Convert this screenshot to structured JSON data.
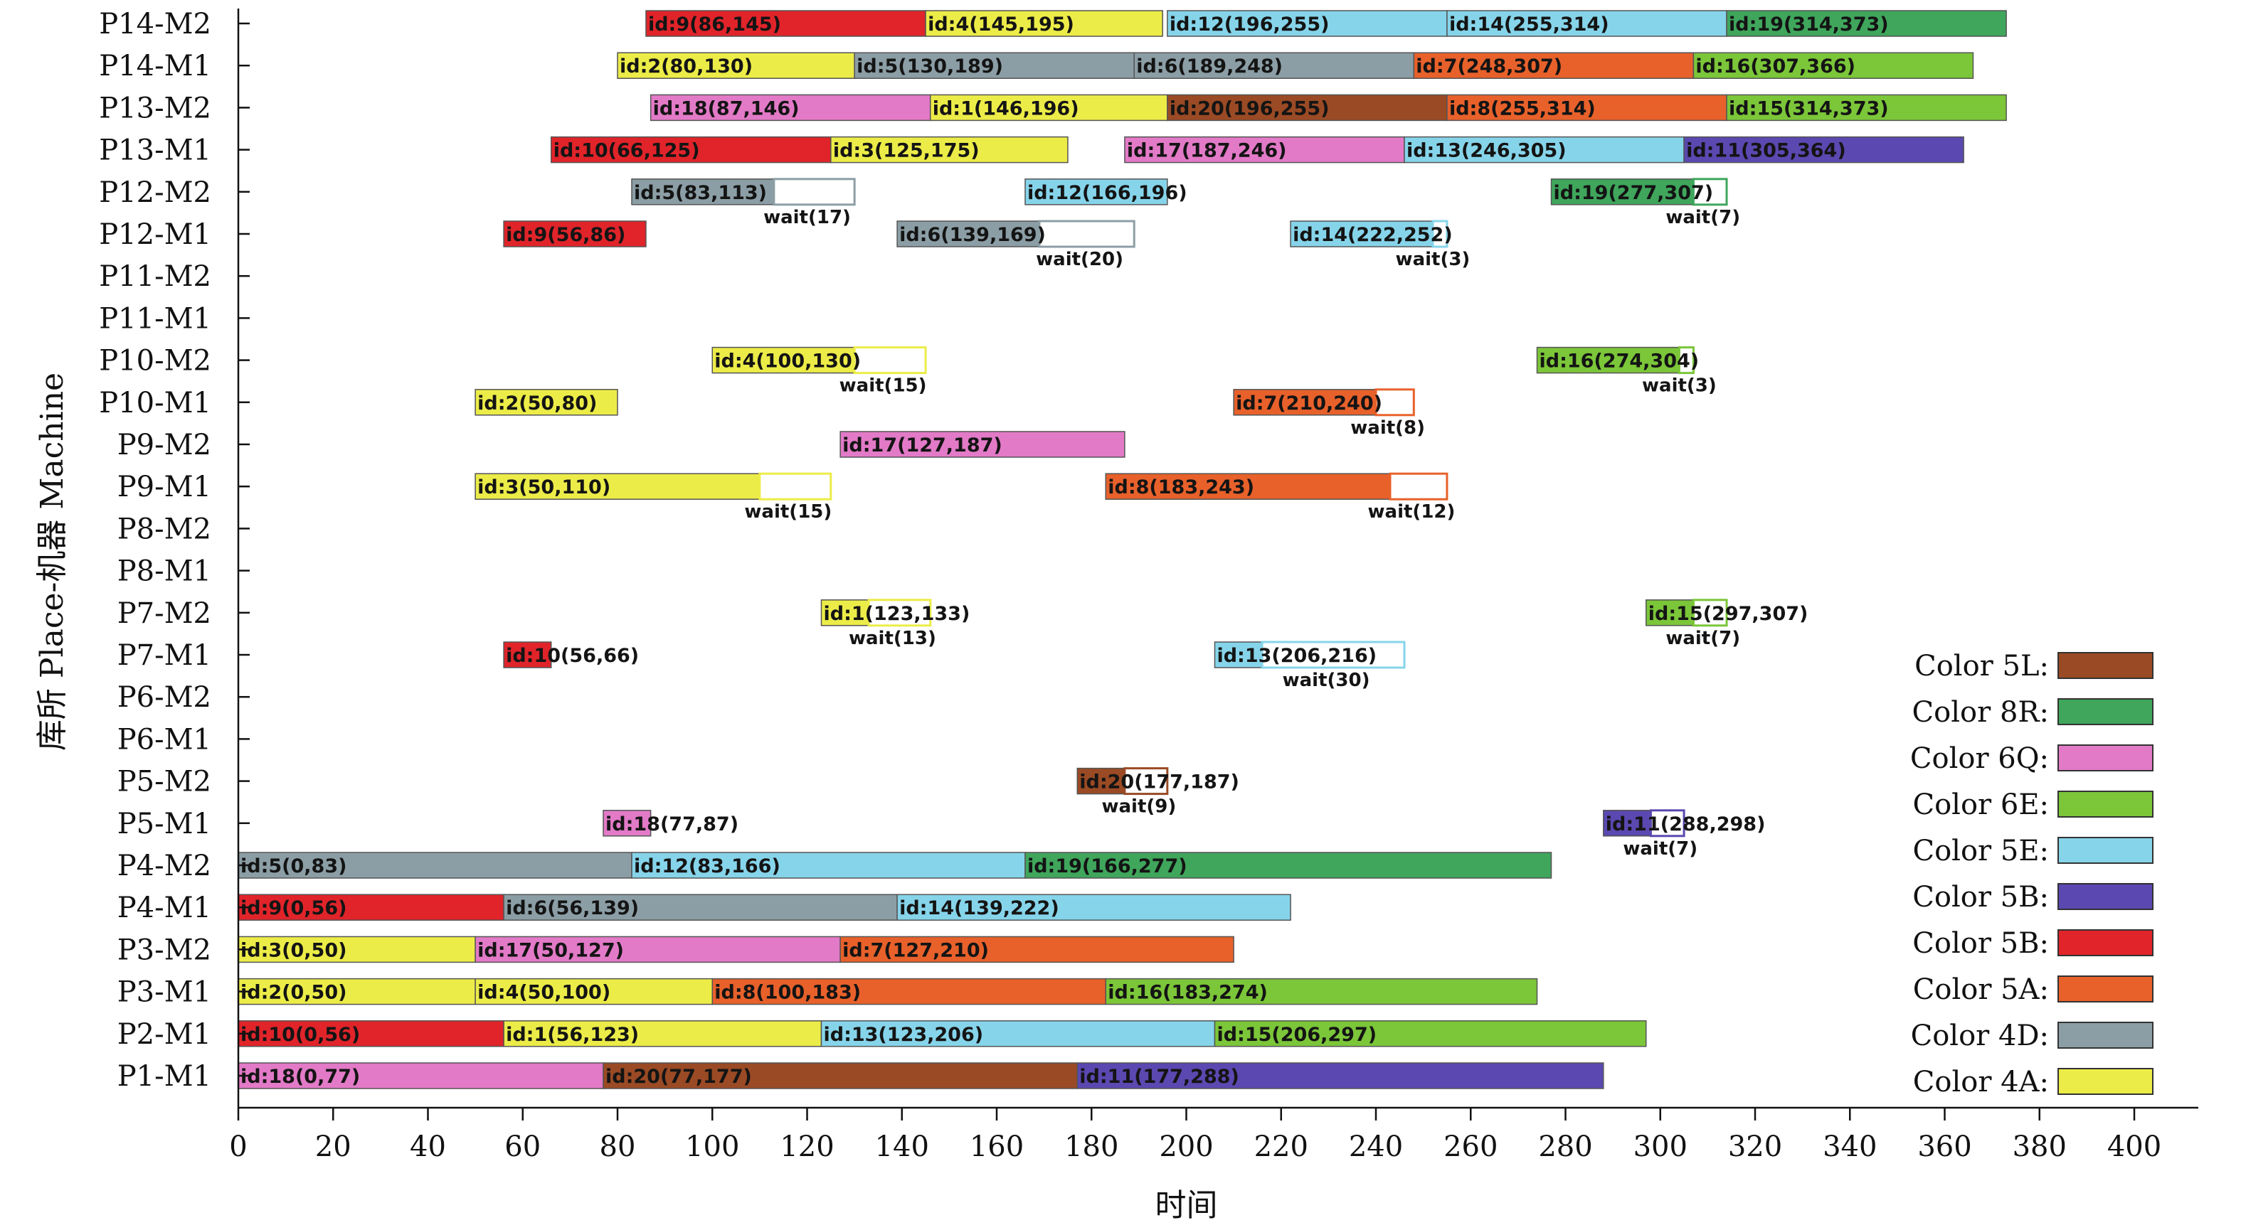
{
  "chart_data": {
    "type": "gantt",
    "title": "",
    "xlabel": "时间",
    "ylabel": "库所 Place-机器 Machine",
    "xlim": [
      0,
      400
    ],
    "xticks": [
      0,
      20,
      40,
      60,
      80,
      100,
      120,
      140,
      160,
      180,
      200,
      220,
      240,
      260,
      280,
      300,
      320,
      340,
      360,
      380,
      400
    ],
    "rows": [
      "P14-M2",
      "P14-M1",
      "P13-M2",
      "P13-M1",
      "P12-M2",
      "P12-M1",
      "P11-M2",
      "P11-M1",
      "P10-M2",
      "P10-M1",
      "P9-M2",
      "P9-M1",
      "P8-M2",
      "P8-M1",
      "P7-M2",
      "P7-M1",
      "P6-M2",
      "P6-M1",
      "P5-M2",
      "P5-M1",
      "P4-M2",
      "P4-M1",
      "P3-M2",
      "P3-M1",
      "P2-M1",
      "P1-M1"
    ],
    "colors": {
      "4A": "#ecec48",
      "4D": "#8c9ea5",
      "5A": "#e8612b",
      "5B_red": "#e0242a",
      "5B_blue": "#5b48b0",
      "5E": "#86d4ea",
      "6E": "#7bc639",
      "6Q": "#e27ac7",
      "8R": "#3fa65c",
      "5L": "#9a4a24"
    },
    "bars": [
      {
        "row": "P14-M2",
        "start": 86,
        "end": 145,
        "label": "id:9(86,145)",
        "color": "5B_red"
      },
      {
        "row": "P14-M2",
        "start": 145,
        "end": 195,
        "label": "id:4(145,195)",
        "color": "4A"
      },
      {
        "row": "P14-M2",
        "start": 196,
        "end": 255,
        "label": "id:12(196,255)",
        "color": "5E"
      },
      {
        "row": "P14-M2",
        "start": 255,
        "end": 314,
        "label": "id:14(255,314)",
        "color": "5E"
      },
      {
        "row": "P14-M2",
        "start": 314,
        "end": 373,
        "label": "id:19(314,373)",
        "color": "8R"
      },
      {
        "row": "P14-M1",
        "start": 80,
        "end": 130,
        "label": "id:2(80,130)",
        "color": "4A"
      },
      {
        "row": "P14-M1",
        "start": 130,
        "end": 189,
        "label": "id:5(130,189)",
        "color": "4D"
      },
      {
        "row": "P14-M1",
        "start": 189,
        "end": 248,
        "label": "id:6(189,248)",
        "color": "4D"
      },
      {
        "row": "P14-M1",
        "start": 248,
        "end": 307,
        "label": "id:7(248,307)",
        "color": "5A"
      },
      {
        "row": "P14-M1",
        "start": 307,
        "end": 366,
        "label": "id:16(307,366)",
        "color": "6E"
      },
      {
        "row": "P13-M2",
        "start": 87,
        "end": 146,
        "label": "id:18(87,146)",
        "color": "6Q"
      },
      {
        "row": "P13-M2",
        "start": 146,
        "end": 196,
        "label": "id:1(146,196)",
        "color": "4A"
      },
      {
        "row": "P13-M2",
        "start": 196,
        "end": 255,
        "label": "id:20(196,255)",
        "color": "5L"
      },
      {
        "row": "P13-M2",
        "start": 255,
        "end": 314,
        "label": "id:8(255,314)",
        "color": "5A"
      },
      {
        "row": "P13-M2",
        "start": 314,
        "end": 373,
        "label": "id:15(314,373)",
        "color": "6E"
      },
      {
        "row": "P13-M1",
        "start": 66,
        "end": 125,
        "label": "id:10(66,125)",
        "color": "5B_red"
      },
      {
        "row": "P13-M1",
        "start": 125,
        "end": 175,
        "label": "id:3(125,175)",
        "color": "4A"
      },
      {
        "row": "P13-M1",
        "start": 187,
        "end": 246,
        "label": "id:17(187,246)",
        "color": "6Q"
      },
      {
        "row": "P13-M1",
        "start": 246,
        "end": 305,
        "label": "id:13(246,305)",
        "color": "5E"
      },
      {
        "row": "P13-M1",
        "start": 305,
        "end": 364,
        "label": "id:11(305,364)",
        "color": "5B_blue"
      },
      {
        "row": "P12-M2",
        "start": 83,
        "end": 113,
        "label": "id:5(83,113)",
        "color": "4D",
        "wait": 17,
        "wait_label": "wait(17)"
      },
      {
        "row": "P12-M2",
        "start": 166,
        "end": 196,
        "label": "id:12(166,196)",
        "color": "5E"
      },
      {
        "row": "P12-M2",
        "start": 277,
        "end": 307,
        "label": "id:19(277,307)",
        "color": "8R",
        "wait": 7,
        "wait_label": "wait(7)"
      },
      {
        "row": "P12-M1",
        "start": 56,
        "end": 86,
        "label": "id:9(56,86)",
        "color": "5B_red"
      },
      {
        "row": "P12-M1",
        "start": 139,
        "end": 169,
        "label": "id:6(139,169)",
        "color": "4D",
        "wait": 20,
        "wait_label": "wait(20)"
      },
      {
        "row": "P12-M1",
        "start": 222,
        "end": 252,
        "label": "id:14(222,252)",
        "color": "5E",
        "wait": 3,
        "wait_label": "wait(3)"
      },
      {
        "row": "P10-M2",
        "start": 100,
        "end": 130,
        "label": "id:4(100,130)",
        "color": "4A",
        "wait": 15,
        "wait_label": "wait(15)"
      },
      {
        "row": "P10-M2",
        "start": 274,
        "end": 304,
        "label": "id:16(274,304)",
        "color": "6E",
        "wait": 3,
        "wait_label": "wait(3)"
      },
      {
        "row": "P10-M1",
        "start": 50,
        "end": 80,
        "label": "id:2(50,80)",
        "color": "4A"
      },
      {
        "row": "P10-M1",
        "start": 210,
        "end": 240,
        "label": "id:7(210,240)",
        "color": "5A",
        "wait": 8,
        "wait_label": "wait(8)"
      },
      {
        "row": "P9-M2",
        "start": 127,
        "end": 187,
        "label": "id:17(127,187)",
        "color": "6Q"
      },
      {
        "row": "P9-M1",
        "start": 50,
        "end": 110,
        "label": "id:3(50,110)",
        "color": "4A",
        "wait": 15,
        "wait_label": "wait(15)"
      },
      {
        "row": "P9-M1",
        "start": 183,
        "end": 243,
        "label": "id:8(183,243)",
        "color": "5A",
        "wait": 12,
        "wait_label": "wait(12)"
      },
      {
        "row": "P7-M2",
        "start": 123,
        "end": 133,
        "label": "id:1(123,133)",
        "color": "4A",
        "wait": 13,
        "wait_label": "wait(13)"
      },
      {
        "row": "P7-M2",
        "start": 297,
        "end": 307,
        "label": "id:15(297,307)",
        "color": "6E",
        "wait": 7,
        "wait_label": "wait(7)"
      },
      {
        "row": "P7-M1",
        "start": 56,
        "end": 66,
        "label": "id:10(56,66)",
        "color": "5B_red"
      },
      {
        "row": "P7-M1",
        "start": 206,
        "end": 216,
        "label": "id:13(206,216)",
        "color": "5E",
        "wait": 30,
        "wait_label": "wait(30)"
      },
      {
        "row": "P5-M2",
        "start": 177,
        "end": 187,
        "label": "id:20(177,187)",
        "color": "5L",
        "wait": 9,
        "wait_label": "wait(9)"
      },
      {
        "row": "P5-M1",
        "start": 77,
        "end": 87,
        "label": "id:18(77,87)",
        "color": "6Q"
      },
      {
        "row": "P5-M1",
        "start": 288,
        "end": 298,
        "label": "id:11(288,298)",
        "color": "5B_blue",
        "wait": 7,
        "wait_label": "wait(7)"
      },
      {
        "row": "P4-M2",
        "start": 0,
        "end": 83,
        "label": "id:5(0,83)",
        "color": "4D"
      },
      {
        "row": "P4-M2",
        "start": 83,
        "end": 166,
        "label": "id:12(83,166)",
        "color": "5E"
      },
      {
        "row": "P4-M2",
        "start": 166,
        "end": 277,
        "label": "id:19(166,277)",
        "color": "8R"
      },
      {
        "row": "P4-M1",
        "start": 0,
        "end": 56,
        "label": "id:9(0,56)",
        "color": "5B_red"
      },
      {
        "row": "P4-M1",
        "start": 56,
        "end": 139,
        "label": "id:6(56,139)",
        "color": "4D"
      },
      {
        "row": "P4-M1",
        "start": 139,
        "end": 222,
        "label": "id:14(139,222)",
        "color": "5E"
      },
      {
        "row": "P3-M2",
        "start": 0,
        "end": 50,
        "label": "id:3(0,50)",
        "color": "4A"
      },
      {
        "row": "P3-M2",
        "start": 50,
        "end": 127,
        "label": "id:17(50,127)",
        "color": "6Q"
      },
      {
        "row": "P3-M2",
        "start": 127,
        "end": 210,
        "label": "id:7(127,210)",
        "color": "5A"
      },
      {
        "row": "P3-M1",
        "start": 0,
        "end": 50,
        "label": "id:2(0,50)",
        "color": "4A"
      },
      {
        "row": "P3-M1",
        "start": 50,
        "end": 100,
        "label": "id:4(50,100)",
        "color": "4A"
      },
      {
        "row": "P3-M1",
        "start": 100,
        "end": 183,
        "label": "id:8(100,183)",
        "color": "5A"
      },
      {
        "row": "P3-M1",
        "start": 183,
        "end": 274,
        "label": "id:16(183,274)",
        "color": "6E"
      },
      {
        "row": "P2-M1",
        "start": 0,
        "end": 56,
        "label": "id:10(0,56)",
        "color": "5B_red"
      },
      {
        "row": "P2-M1",
        "start": 56,
        "end": 123,
        "label": "id:1(56,123)",
        "color": "4A"
      },
      {
        "row": "P2-M1",
        "start": 123,
        "end": 206,
        "label": "id:13(123,206)",
        "color": "5E"
      },
      {
        "row": "P2-M1",
        "start": 206,
        "end": 297,
        "label": "id:15(206,297)",
        "color": "6E"
      },
      {
        "row": "P1-M1",
        "start": 0,
        "end": 77,
        "label": "id:18(0,77)",
        "color": "6Q"
      },
      {
        "row": "P1-M1",
        "start": 77,
        "end": 177,
        "label": "id:20(77,177)",
        "color": "5L"
      },
      {
        "row": "P1-M1",
        "start": 177,
        "end": 288,
        "label": "id:11(177,288)",
        "color": "5B_blue"
      }
    ],
    "legend": {
      "position": "bottom-right",
      "entries": [
        {
          "label": "Color 5L:",
          "color": "5L"
        },
        {
          "label": "Color 8R:",
          "color": "8R"
        },
        {
          "label": "Color 6Q:",
          "color": "6Q"
        },
        {
          "label": "Color 6E:",
          "color": "6E"
        },
        {
          "label": "Color 5E:",
          "color": "5E"
        },
        {
          "label": "Color 5B:",
          "color": "5B_blue"
        },
        {
          "label": "Color 5B:",
          "color": "5B_red"
        },
        {
          "label": "Color 5A:",
          "color": "5A"
        },
        {
          "label": "Color 4D:",
          "color": "4D"
        },
        {
          "label": "Color 4A:",
          "color": "4A"
        }
      ]
    }
  }
}
